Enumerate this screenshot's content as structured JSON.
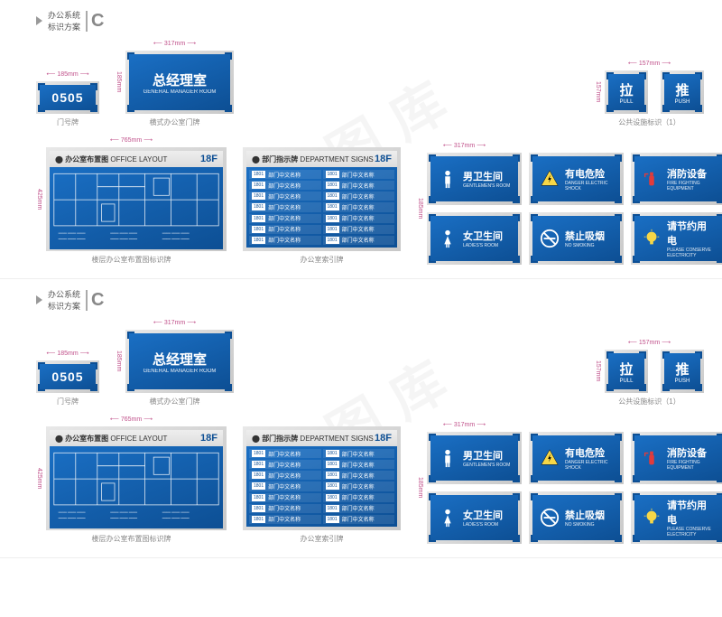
{
  "header": {
    "title1": "办公系统",
    "title2": "标识方案",
    "letter": "C"
  },
  "watermark": "包图库",
  "signs": {
    "room_number": {
      "value": "0505",
      "caption": "门号牌",
      "dim_w": "185mm"
    },
    "manager": {
      "title": "总经理室",
      "sub": "GENERAL MANAGER ROOM",
      "caption": "横式办公室门牌",
      "dim_w": "317mm",
      "dim_h": "185mm"
    },
    "pull": {
      "title": "拉",
      "sub": "PULL"
    },
    "push": {
      "title": "推",
      "sub": "PUSH"
    },
    "pull_push": {
      "caption": "公共设施标识（1）",
      "dim_w": "157mm",
      "dim_h": "157mm"
    },
    "layout": {
      "title": "办公室布置图",
      "sub": "OFFICE LAYOUT",
      "floor": "18F",
      "caption": "楼层办公室布置图标识牌",
      "dim_w": "765mm",
      "dim_h": "425mm"
    },
    "directory": {
      "title": "部门指示牌",
      "sub": "DEPARTMENT SIGNS",
      "floor": "18F",
      "caption": "办公室索引牌",
      "rows": [
        "部门中文名称",
        "部门中文名称",
        "部门中文名称",
        "部门中文名称",
        "部门中文名称",
        "部门中文名称",
        "部门中文名称",
        "部门中文名称",
        "部门中文名称",
        "部门中文名称",
        "部门中文名称",
        "部门中文名称",
        "部门中文名称",
        "部门中文名称"
      ],
      "room_prefix": "1801"
    },
    "facilities": {
      "dim_w": "317mm",
      "dim_h": "185mm",
      "items": [
        {
          "id": "male-toilet",
          "title": "男卫生间",
          "sub": "GENTLEMEN'S ROOM",
          "icon": "male",
          "icon_color": "#ffffff"
        },
        {
          "id": "electric",
          "title": "有电危险",
          "sub": "DANGER ELECTRIC SHOCK",
          "icon": "bolt",
          "icon_color": "#f7d747"
        },
        {
          "id": "fire",
          "title": "消防设备",
          "sub": "FIRE FIGHTING EQUIPMENT",
          "icon": "extinguisher",
          "icon_color": "#e23b3b"
        },
        {
          "id": "female-toilet",
          "title": "女卫生间",
          "sub": "LADIES'S ROOM",
          "icon": "female",
          "icon_color": "#ffffff"
        },
        {
          "id": "no-smoking",
          "title": "禁止吸烟",
          "sub": "NO SMOKING",
          "icon": "nosmoke",
          "icon_color": "#ffffff"
        },
        {
          "id": "save-power",
          "title": "请节约用电",
          "sub": "PLEASE CONSERVE ELECTRICITY",
          "icon": "bulb",
          "icon_color": "#f7d747"
        }
      ]
    }
  },
  "colors": {
    "primary_light": "#1a6fc4",
    "primary_dark": "#0d4f94",
    "frame": "#d0d0d0",
    "dim": "#c0508a"
  }
}
